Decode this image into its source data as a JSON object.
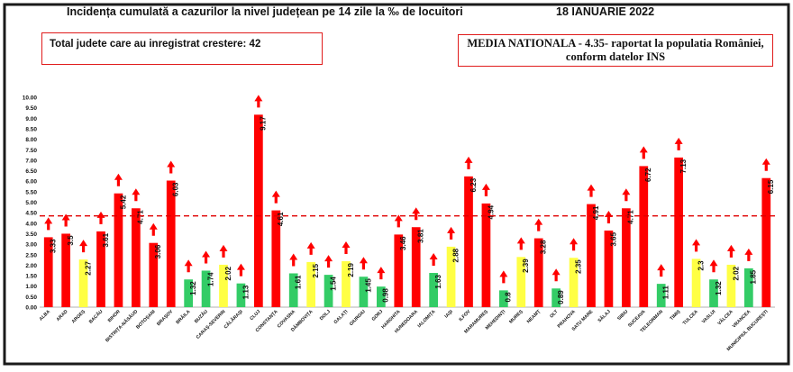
{
  "header": {
    "title": "Incidența cumulată a cazurilor la nivel județean pe 14 zile la ‰ de locuitori",
    "date": "18 IANUARIE 2022"
  },
  "info_boxes": {
    "left": "Total judete care au inregistrat crestere: 42",
    "right_line1": "MEDIA NATIONALA - 4.35-  raportat la populatia României,",
    "right_line2": "conform datelor INS"
  },
  "colors": {
    "red": "#ff0000",
    "yellow": "#ffff44",
    "green": "#33cc66",
    "frame": "#1a1a1a",
    "arrow": "#ff0000",
    "reference_line": "#e00000"
  },
  "chart_data": {
    "type": "bar",
    "ylim": [
      0,
      10
    ],
    "yticks": [
      "0.00",
      "0.50",
      "1.00",
      "1.50",
      "2.00",
      "2.50",
      "3.00",
      "3.50",
      "4.00",
      "4.50",
      "5.00",
      "5.50",
      "6.00",
      "6.50",
      "7.00",
      "7.50",
      "8.00",
      "8.50",
      "9.00",
      "9.50",
      "10.00"
    ],
    "reference_line": 4.35,
    "categories": [
      "ALBA",
      "ARAD",
      "ARGEȘ",
      "BACĂU",
      "BIHOR",
      "BISTRIȚA-NĂSĂUD",
      "BOTOȘANI",
      "BRAȘOV",
      "BRĂILA",
      "BUZĂU",
      "CARAȘ-SEVERIN",
      "CĂLĂRAȘI",
      "CLUJ",
      "CONSTANȚA",
      "COVASNA",
      "DÂMBOVIȚA",
      "DOLJ",
      "GALAȚI",
      "GIURGIU",
      "GORJ",
      "HARGHITA",
      "HUNEDOARA",
      "IALOMIȚA",
      "IAȘI",
      "ILFOV",
      "MARAMUREȘ",
      "MEHEDINȚI",
      "MUREȘ",
      "NEAMȚ",
      "OLT",
      "PRAHOVA",
      "SATU MARE",
      "SĂLAJ",
      "SIBIU",
      "SUCEAVA",
      "TELEORMAN",
      "TIMIȘ",
      "TULCEA",
      "VASLUI",
      "VÂLCEA",
      "VRANCEA",
      "MUNICIPIUL BUCUREȘTI"
    ],
    "values": [
      3.33,
      3.5,
      2.27,
      3.61,
      5.42,
      4.71,
      3.06,
      6.03,
      1.32,
      1.74,
      2.02,
      1.13,
      9.17,
      4.61,
      1.61,
      2.15,
      1.54,
      2.19,
      1.45,
      0.98,
      3.46,
      3.81,
      1.63,
      2.88,
      6.23,
      4.94,
      0.8,
      2.39,
      3.28,
      0.89,
      2.35,
      4.91,
      3.65,
      4.71,
      6.72,
      1.11,
      7.13,
      2.3,
      1.32,
      2.02,
      1.85,
      6.15
    ],
    "value_labels": [
      "3.33",
      "3.5",
      "2.27",
      "3.61",
      "5.42",
      "4.71",
      "3.06",
      "6.03",
      "1.32",
      "1.74",
      "2.02",
      "1.13",
      "9.17",
      "4.61",
      "1.61",
      "2.15",
      "1.54",
      "2.19",
      "1.45",
      "0.98",
      "3.46",
      "3.81",
      "1.63",
      "2.88",
      "6.23",
      "4.94",
      "0.8",
      "2.39",
      "3.28",
      "0.89",
      "2.35",
      "4.91",
      "3.65",
      "4.71",
      "6.72",
      "1.11",
      "7.13",
      "2.3",
      "1.32",
      "2.02",
      "1.85",
      "6.15"
    ],
    "bar_colors": [
      "red",
      "red",
      "yellow",
      "red",
      "red",
      "red",
      "red",
      "red",
      "green",
      "green",
      "yellow",
      "green",
      "red",
      "red",
      "green",
      "yellow",
      "green",
      "yellow",
      "green",
      "green",
      "red",
      "red",
      "green",
      "yellow",
      "red",
      "red",
      "green",
      "yellow",
      "red",
      "green",
      "yellow",
      "red",
      "red",
      "red",
      "red",
      "green",
      "red",
      "yellow",
      "green",
      "yellow",
      "green",
      "red"
    ],
    "trend": "up",
    "grid": false,
    "legend": "none"
  }
}
